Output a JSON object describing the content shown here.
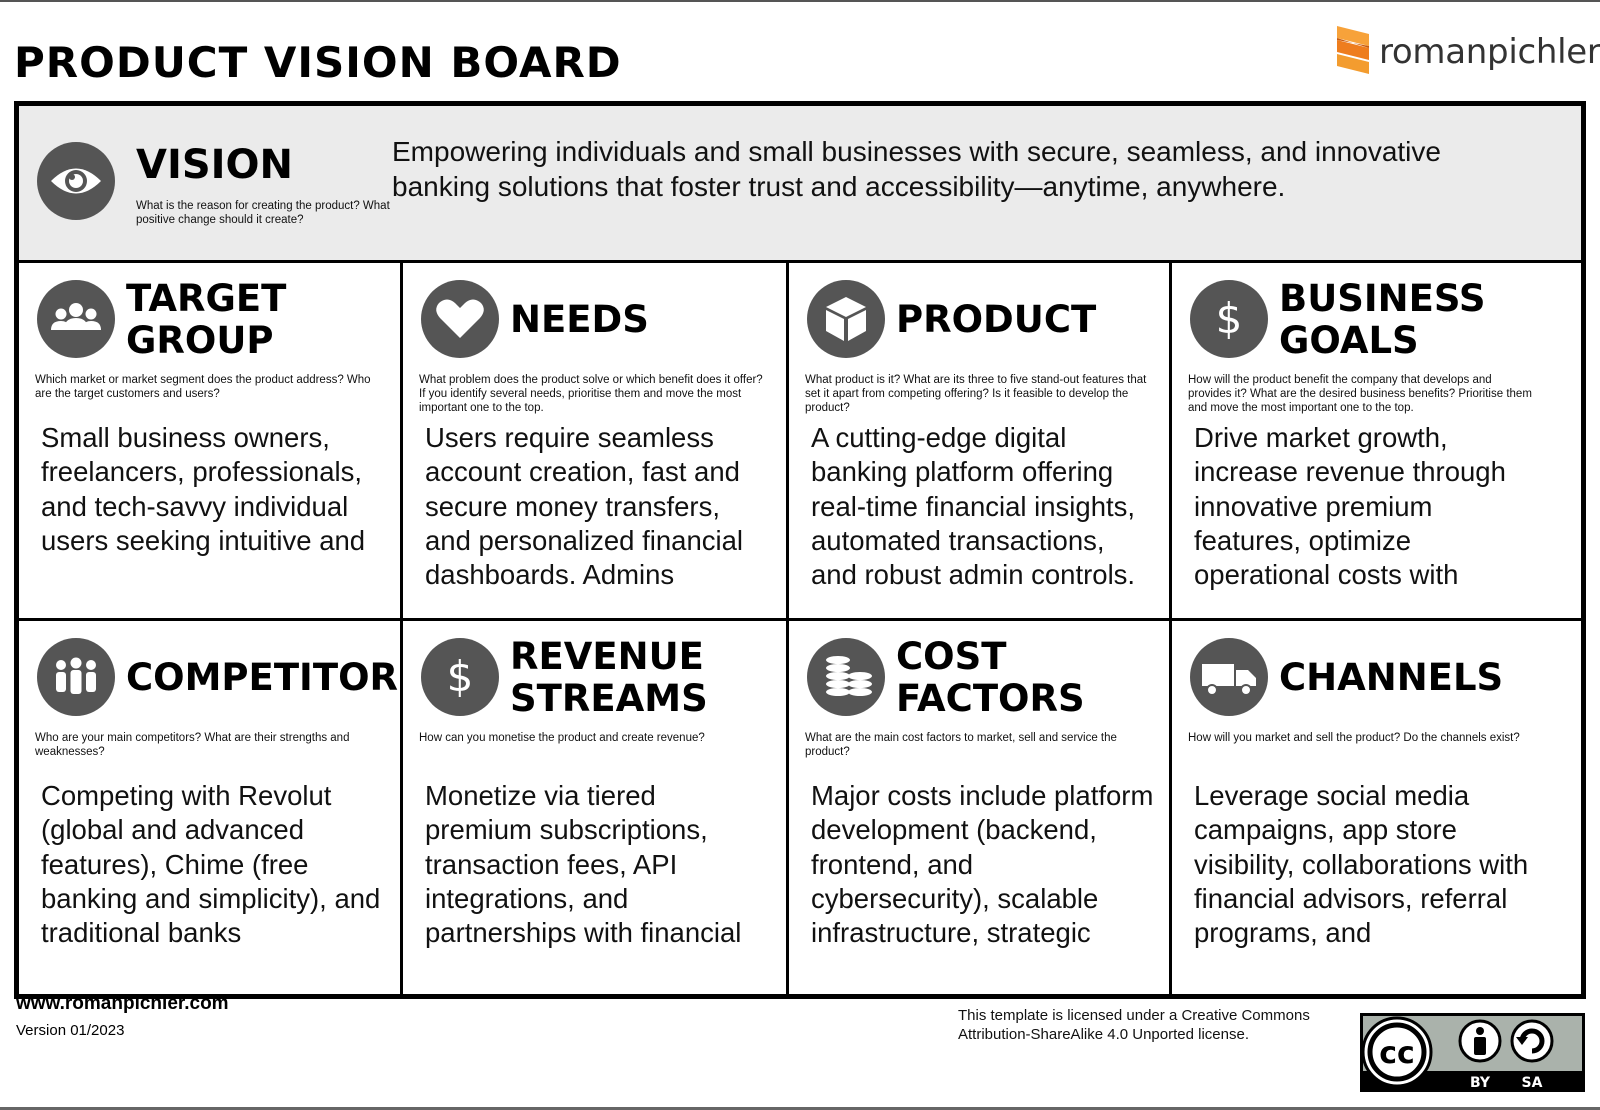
{
  "page_title": "PRODUCT VISION BOARD",
  "logo_text": "romanpichler",
  "vision": {
    "heading": "VISION",
    "prompt": "What is the reason for creating the product? What positive change should it create?",
    "text": "Empowering individuals and small businesses with secure, seamless, and innovative banking solutions that foster trust and accessibility—anytime, anywhere."
  },
  "sections": [
    {
      "heading": "TARGET\nGROUP",
      "icon": "people-icon",
      "prompt": "Which market or market segment does the product address? Who are the target customers and users?",
      "text": "Small business owners, freelancers, professionals, and tech-savvy individual users seeking intuitive and"
    },
    {
      "heading": "NEEDS",
      "icon": "heart-icon",
      "prompt": "What problem does the product solve or which benefit does it offer? If you identify several needs, prioritise them and move the most important one to the top.",
      "text": "Users require seamless account creation, fast and secure money transfers, and personalized financial dashboards. Admins"
    },
    {
      "heading": "PRODUCT",
      "icon": "cube-icon",
      "prompt": "What product is it? What are its three to five stand-out features that set it apart from competing offering? Is it feasible to develop the product?",
      "text": "A cutting-edge digital banking platform offering real-time financial insights, automated transactions, and robust admin controls."
    },
    {
      "heading": "BUSINESS\nGOALS",
      "icon": "dollar-icon",
      "prompt": "How will the product benefit the company that  develops and provides it? What are the desired business benefits? Prioritise them and move the most important one to the top.",
      "text": "Drive market growth, increase revenue through innovative premium features, optimize operational costs with"
    },
    {
      "heading": "COMPETITORS",
      "icon": "crowd-icon",
      "prompt": "Who are your main competitors? What are their strengths and weaknesses?",
      "text": "Competing with Revolut (global and advanced features), Chime (free banking and simplicity), and traditional banks"
    },
    {
      "heading": "REVENUE\nSTREAMS",
      "icon": "dollar-icon",
      "prompt": "How can you monetise the product and create revenue?",
      "text": "Monetize via tiered premium subscriptions, transaction fees, API integrations, and partnerships with financial"
    },
    {
      "heading": "COST\nFACTORS",
      "icon": "coins-icon",
      "prompt": "What are the main cost factors to market, sell and service the product?",
      "text": "Major costs include platform development (backend, frontend, and cybersecurity), scalable infrastructure, strategic"
    },
    {
      "heading": "CHANNELS",
      "icon": "truck-icon",
      "prompt": "How will you market and sell the product? Do the channels exist?",
      "text": "Leverage social media campaigns, app store visibility, collaborations with financial advisors, referral programs, and"
    }
  ],
  "footer": {
    "url": "www.romanpichler.com",
    "version": "Version 01/2023",
    "license": "This template is licensed under a Creative Commons Attribution-ShareAlike 4.0 Unported license.",
    "badge_cc": "cc",
    "badge_by": "BY",
    "badge_sa": "SA"
  },
  "colors": {
    "icon_circle": "#555555",
    "vision_band": "#ebebeb",
    "logo_orange": "#f08a24"
  }
}
